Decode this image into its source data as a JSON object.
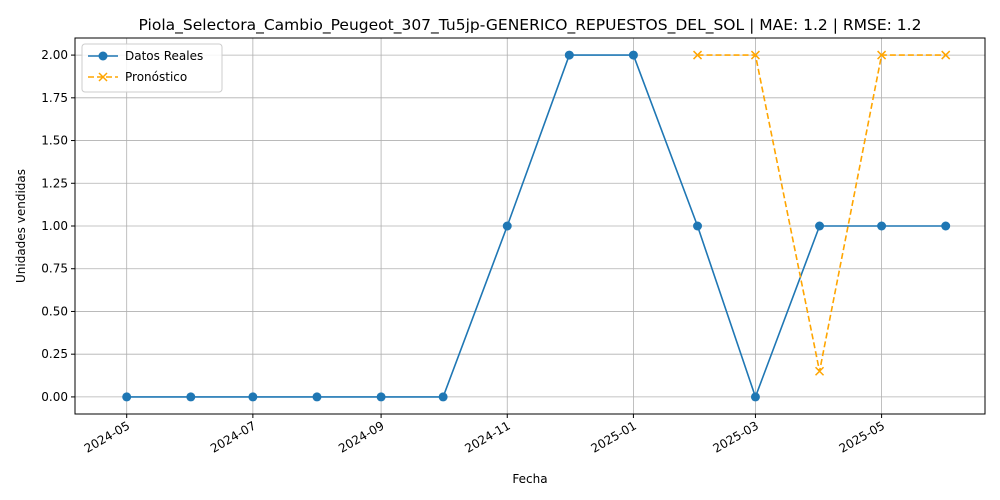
{
  "chart_data": {
    "type": "line",
    "title": "Piola_Selectora_Cambio_Peugeot_307_Tu5jp-GENERICO_REPUESTOS_DEL_SOL | MAE: 1.2 | RMSE: 1.2",
    "xlabel": "Fecha",
    "ylabel": "Unidades vendidas",
    "xlim": [
      "2024-04-06",
      "2025-06-20"
    ],
    "ylim": [
      -0.1,
      2.1
    ],
    "grid": true,
    "legend": "top-left",
    "x_ticks": [
      "2024-05",
      "2024-07",
      "2024-09",
      "2024-11",
      "2025-01",
      "2025-03",
      "2025-05"
    ],
    "y_ticks": [
      "0.00",
      "0.25",
      "0.50",
      "0.75",
      "1.00",
      "1.25",
      "1.50",
      "1.75",
      "2.00"
    ],
    "series": [
      {
        "name": "Datos Reales",
        "color": "#1f77b4",
        "style": "solid",
        "marker": "circle",
        "x": [
          "2024-05-01",
          "2024-06-01",
          "2024-07-01",
          "2024-08-01",
          "2024-09-01",
          "2024-10-01",
          "2024-11-01",
          "2024-12-01",
          "2025-01-01",
          "2025-02-01",
          "2025-03-01",
          "2025-04-01",
          "2025-05-01",
          "2025-06-01"
        ],
        "values": [
          0,
          0,
          0,
          0,
          0,
          0,
          1,
          2,
          2,
          1,
          0,
          1,
          1,
          1
        ]
      },
      {
        "name": "Pronóstico",
        "color": "#ffa500",
        "style": "dashed",
        "marker": "x",
        "x": [
          "2025-02-01",
          "2025-03-01",
          "2025-04-01",
          "2025-05-01",
          "2025-06-01"
        ],
        "values": [
          2,
          2,
          0.15,
          2,
          2
        ]
      }
    ]
  }
}
